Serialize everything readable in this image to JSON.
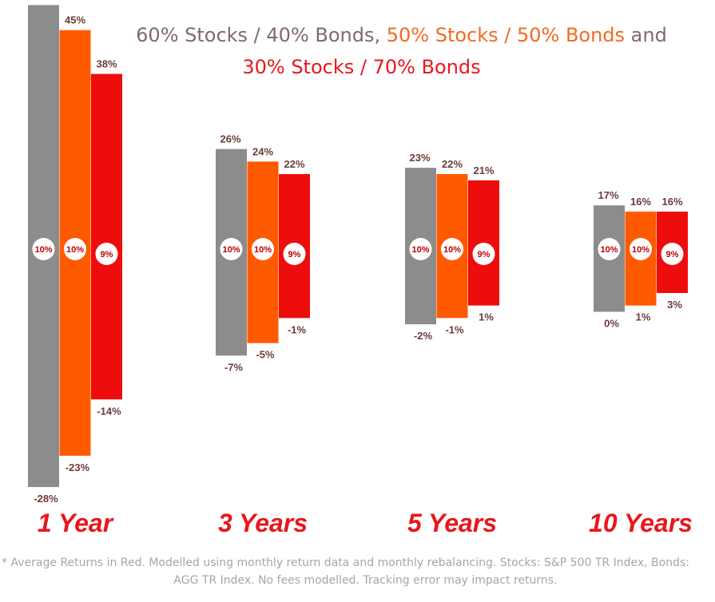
{
  "title": {
    "part1": "60% Stocks / 40% Bonds",
    "sep1": ", ",
    "part2": "50% Stocks / 50% Bonds",
    "sep2": " and",
    "part3": "30% Stocks / 70% Bonds"
  },
  "footnote": {
    "line1": "* Average Returns in Red. Modelled using monthly return data and monthly rebalancing. Stocks: S&P 500 TR Index, Bonds:",
    "line2": "AGG TR Index. No fees modelled.  Tracking error may impact returns."
  },
  "colors": {
    "series_60_40": "#8c8c8c",
    "series_50_50": "#ff5a00",
    "series_30_70": "#ee0d0d",
    "title_gray": "#7f6a6a",
    "title_orange": "#f26a21",
    "title_red": "#e8171d",
    "label_text": "#6b3a3a",
    "avg_text": "#c00000",
    "period_label": "#e8171d"
  },
  "chart_data": {
    "type": "floating-range-bar",
    "title": "60% Stocks / 40% Bonds, 50% Stocks / 50% Bonds and 30% Stocks / 70% Bonds",
    "categories": [
      "1 Year",
      "3 Years",
      "5 Years",
      "10 Years"
    ],
    "unit": "%",
    "series": [
      {
        "name": "60% Stocks / 40% Bonds",
        "max": [
          49,
          26,
          23,
          17
        ],
        "min": [
          -28,
          -7,
          -2,
          0
        ],
        "avg": [
          10,
          10,
          10,
          10
        ]
      },
      {
        "name": "50% Stocks / 50% Bonds",
        "max": [
          45,
          24,
          22,
          16
        ],
        "min": [
          -23,
          -5,
          -1,
          1
        ],
        "avg": [
          10,
          10,
          10,
          10
        ]
      },
      {
        "name": "30% Stocks / 70% Bonds",
        "max": [
          38,
          22,
          21,
          16
        ],
        "min": [
          -14,
          -1,
          1,
          3
        ],
        "avg": [
          9,
          9,
          9,
          9
        ]
      }
    ],
    "avg_label_color": "red"
  }
}
